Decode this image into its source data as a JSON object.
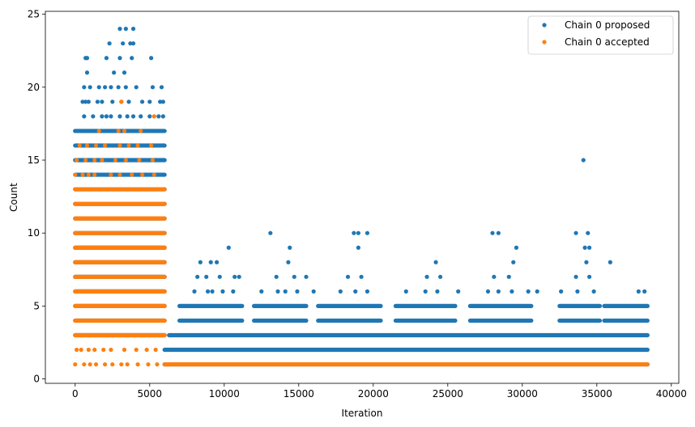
{
  "chart_data": {
    "type": "scatter",
    "xlabel": "Iteration",
    "ylabel": "Count",
    "xlim": [
      -2000,
      40500
    ],
    "ylim": [
      -0.3,
      25.2
    ],
    "xticks": [
      0,
      5000,
      10000,
      15000,
      20000,
      25000,
      30000,
      35000,
      40000
    ],
    "yticks": [
      0,
      5,
      10,
      15,
      20,
      25
    ],
    "legend_position": "top-right",
    "grid": false,
    "series": [
      {
        "name": "Chain 0 proposed",
        "color": "#1f77b4",
        "bands": [
          {
            "y": 2,
            "x_start": 6000,
            "x_end": 38400
          },
          {
            "y": 3,
            "x_start": 6300,
            "x_end": 38400
          },
          {
            "y": 1,
            "x_start": 6000,
            "x_end": 38400
          }
        ],
        "clusters": [
          {
            "x_start": 0,
            "x_end": 6000,
            "y_min": 3,
            "y_max": 17
          },
          {
            "x_start": 7000,
            "x_end": 11200,
            "y_min": 4,
            "y_max": 5
          },
          {
            "x_start": 12000,
            "x_end": 15500,
            "y_min": 4,
            "y_max": 5
          },
          {
            "x_start": 16300,
            "x_end": 20500,
            "y_min": 4,
            "y_max": 5
          },
          {
            "x_start": 21500,
            "x_end": 25500,
            "y_min": 4,
            "y_max": 5
          },
          {
            "x_start": 26500,
            "x_end": 30600,
            "y_min": 4,
            "y_max": 5
          },
          {
            "x_start": 32500,
            "x_end": 35200,
            "y_min": 4,
            "y_max": 5
          },
          {
            "x_start": 35500,
            "x_end": 38400,
            "y_min": 4,
            "y_max": 5
          }
        ],
        "points": [
          [
            3000,
            24
          ],
          [
            3400,
            24
          ],
          [
            3900,
            24
          ],
          [
            2300,
            23
          ],
          [
            3700,
            23
          ],
          [
            3200,
            23
          ],
          [
            3900,
            23
          ],
          [
            700,
            22
          ],
          [
            800,
            22
          ],
          [
            2100,
            22
          ],
          [
            3000,
            22
          ],
          [
            3800,
            22
          ],
          [
            5100,
            22
          ],
          [
            800,
            21
          ],
          [
            2600,
            21
          ],
          [
            3300,
            21
          ],
          [
            600,
            20
          ],
          [
            1000,
            20
          ],
          [
            1600,
            20
          ],
          [
            2000,
            20
          ],
          [
            2400,
            20
          ],
          [
            2900,
            20
          ],
          [
            3400,
            20
          ],
          [
            4100,
            20
          ],
          [
            5200,
            20
          ],
          [
            5800,
            20
          ],
          [
            500,
            19
          ],
          [
            700,
            19
          ],
          [
            900,
            19
          ],
          [
            1500,
            19
          ],
          [
            1800,
            19
          ],
          [
            2500,
            19
          ],
          [
            3100,
            19
          ],
          [
            3600,
            19
          ],
          [
            4500,
            19
          ],
          [
            5000,
            19
          ],
          [
            5700,
            19
          ],
          [
            5900,
            19
          ],
          [
            600,
            18
          ],
          [
            1200,
            18
          ],
          [
            1800,
            18
          ],
          [
            2100,
            18
          ],
          [
            2400,
            18
          ],
          [
            3000,
            18
          ],
          [
            3500,
            18
          ],
          [
            3900,
            18
          ],
          [
            4400,
            18
          ],
          [
            5000,
            18
          ],
          [
            5600,
            18
          ],
          [
            5900,
            18
          ],
          [
            0,
            17
          ],
          [
            300,
            17
          ],
          [
            1000,
            17
          ],
          [
            1400,
            17
          ],
          [
            1800,
            17
          ],
          [
            2200,
            17
          ],
          [
            2600,
            17
          ],
          [
            3100,
            17
          ],
          [
            3500,
            17
          ],
          [
            4000,
            17
          ],
          [
            4700,
            17
          ],
          [
            5100,
            17
          ],
          [
            5700,
            17
          ],
          [
            8400,
            8
          ],
          [
            9100,
            8
          ],
          [
            9500,
            8
          ],
          [
            14300,
            8
          ],
          [
            24200,
            8
          ],
          [
            29400,
            8
          ],
          [
            34300,
            8
          ],
          [
            35900,
            8
          ],
          [
            8200,
            7
          ],
          [
            8800,
            7
          ],
          [
            9700,
            7
          ],
          [
            10700,
            7
          ],
          [
            11000,
            7
          ],
          [
            13500,
            7
          ],
          [
            14700,
            7
          ],
          [
            15500,
            7
          ],
          [
            18300,
            7
          ],
          [
            19200,
            7
          ],
          [
            23600,
            7
          ],
          [
            24500,
            7
          ],
          [
            28100,
            7
          ],
          [
            29100,
            7
          ],
          [
            33600,
            7
          ],
          [
            34500,
            7
          ],
          [
            8000,
            6
          ],
          [
            8900,
            6
          ],
          [
            9200,
            6
          ],
          [
            9900,
            6
          ],
          [
            10600,
            6
          ],
          [
            12500,
            6
          ],
          [
            13600,
            6
          ],
          [
            14100,
            6
          ],
          [
            14900,
            6
          ],
          [
            16000,
            6
          ],
          [
            17800,
            6
          ],
          [
            18800,
            6
          ],
          [
            19600,
            6
          ],
          [
            22200,
            6
          ],
          [
            23500,
            6
          ],
          [
            24300,
            6
          ],
          [
            25700,
            6
          ],
          [
            27700,
            6
          ],
          [
            28400,
            6
          ],
          [
            29300,
            6
          ],
          [
            30400,
            6
          ],
          [
            31000,
            6
          ],
          [
            32600,
            6
          ],
          [
            33700,
            6
          ],
          [
            34800,
            6
          ],
          [
            37800,
            6
          ],
          [
            38200,
            6
          ],
          [
            10300,
            9
          ],
          [
            14400,
            9
          ],
          [
            19000,
            9
          ],
          [
            29600,
            9
          ],
          [
            34200,
            9
          ],
          [
            34500,
            9
          ],
          [
            13100,
            10
          ],
          [
            18700,
            10
          ],
          [
            19000,
            10
          ],
          [
            19600,
            10
          ],
          [
            28000,
            10
          ],
          [
            28400,
            10
          ],
          [
            33600,
            10
          ],
          [
            34400,
            10
          ],
          [
            34100,
            15
          ]
        ]
      },
      {
        "name": "Chain 0 accepted",
        "color": "#ff7f0e",
        "bands": [
          {
            "y": 1,
            "x_start": 6000,
            "x_end": 38400
          }
        ],
        "clusters": [
          {
            "x_start": 0,
            "x_end": 6000,
            "y_min": 3,
            "y_max": 13
          }
        ],
        "points": [
          [
            0,
            1
          ],
          [
            600,
            1
          ],
          [
            1000,
            1
          ],
          [
            1400,
            1
          ],
          [
            2000,
            1
          ],
          [
            2500,
            1
          ],
          [
            3100,
            1
          ],
          [
            3500,
            1
          ],
          [
            4200,
            1
          ],
          [
            4900,
            1
          ],
          [
            5500,
            1
          ],
          [
            100,
            2
          ],
          [
            400,
            2
          ],
          [
            900,
            2
          ],
          [
            1300,
            2
          ],
          [
            1900,
            2
          ],
          [
            2400,
            2
          ],
          [
            3300,
            2
          ],
          [
            4100,
            2
          ],
          [
            4800,
            2
          ],
          [
            5400,
            2
          ],
          [
            0,
            14
          ],
          [
            500,
            14
          ],
          [
            900,
            14
          ],
          [
            1300,
            14
          ],
          [
            2400,
            14
          ],
          [
            3000,
            14
          ],
          [
            3800,
            14
          ],
          [
            4500,
            14
          ],
          [
            5300,
            14
          ],
          [
            100,
            15
          ],
          [
            700,
            15
          ],
          [
            1300,
            15
          ],
          [
            1800,
            15
          ],
          [
            2700,
            15
          ],
          [
            3400,
            15
          ],
          [
            4300,
            15
          ],
          [
            5200,
            15
          ],
          [
            300,
            16
          ],
          [
            800,
            16
          ],
          [
            1400,
            16
          ],
          [
            2000,
            16
          ],
          [
            3000,
            16
          ],
          [
            3600,
            16
          ],
          [
            4200,
            16
          ],
          [
            5100,
            16
          ],
          [
            1600,
            17
          ],
          [
            2900,
            17
          ],
          [
            3300,
            17
          ],
          [
            4400,
            17
          ],
          [
            5300,
            18
          ],
          [
            3100,
            19
          ]
        ]
      }
    ]
  }
}
